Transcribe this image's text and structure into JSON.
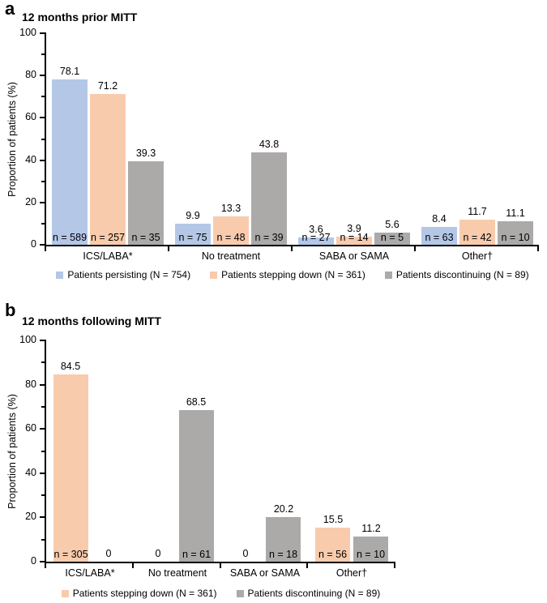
{
  "figure": {
    "background": "#ffffff",
    "text_color": "#000000",
    "axis_color": "#000000"
  },
  "colors": {
    "persisting_blue": "#B4C7E7",
    "stepping_down_orange": "#F8CBAD",
    "discontinuing_gray": "#ACA9A9"
  },
  "chart_data": [
    {
      "type": "bar",
      "panel_letter": "a",
      "title": "12 months prior MITT",
      "ylabel": "Proportion of patients (%)",
      "ylim": [
        0,
        100
      ],
      "ytick_values": [
        0,
        20,
        40,
        60,
        80,
        100
      ],
      "ytick_labels": [
        "0",
        "20",
        "40",
        "60",
        "80",
        "100"
      ],
      "minor_ytick_values": [
        10,
        30,
        50,
        70,
        90
      ],
      "grid": "off",
      "legend_position": "below-center",
      "categories": [
        "ICS/LABA*",
        "No treatment",
        "SABA or SAMA",
        "Other†"
      ],
      "series": [
        {
          "name": "Patients persisting (N = 754)",
          "color": "#B4C7E7",
          "values": [
            78.1,
            9.9,
            3.6,
            8.4
          ],
          "value_labels": [
            "78.1",
            "9.9",
            "3.6",
            "8.4"
          ],
          "n_labels": [
            "n = 589",
            "n = 75",
            "n = 27",
            "n = 63"
          ]
        },
        {
          "name": "Patients stepping down (N = 361)",
          "color": "#F8CBAD",
          "values": [
            71.2,
            13.3,
            3.9,
            11.7
          ],
          "value_labels": [
            "71.2",
            "13.3",
            "3.9",
            "11.7"
          ],
          "n_labels": [
            "n = 257",
            "n = 48",
            "n = 14",
            "n = 42"
          ]
        },
        {
          "name": "Patients discontinuing (N = 89)",
          "color": "#ACA9A9",
          "values": [
            39.3,
            43.8,
            5.6,
            11.1
          ],
          "value_labels": [
            "39.3",
            "43.8",
            "5.6",
            "11.1"
          ],
          "n_labels": [
            "n = 35",
            "n = 39",
            "n = 5",
            "n = 10"
          ]
        }
      ]
    },
    {
      "type": "bar",
      "panel_letter": "b",
      "title": "12 months following MITT",
      "ylabel": "Proportion of patients (%)",
      "ylim": [
        0,
        100
      ],
      "ytick_values": [
        0,
        20,
        40,
        60,
        80,
        100
      ],
      "ytick_labels": [
        "0",
        "20",
        "40",
        "60",
        "80",
        "100"
      ],
      "minor_ytick_values": [
        10,
        30,
        50,
        70,
        90
      ],
      "grid": "off",
      "legend_position": "below-center",
      "categories": [
        "ICS/LABA*",
        "No treatment",
        "SABA or SAMA",
        "Other†"
      ],
      "series": [
        {
          "name": "Patients stepping down (N = 361)",
          "color": "#F8CBAD",
          "values": [
            84.5,
            0,
            0,
            15.5
          ],
          "value_labels": [
            "84.5",
            "0",
            "0",
            "15.5"
          ],
          "n_labels": [
            "n = 305",
            null,
            null,
            "n = 56"
          ]
        },
        {
          "name": "Patients discontinuing (N = 89)",
          "color": "#ACA9A9",
          "values": [
            0,
            68.5,
            20.2,
            11.2
          ],
          "value_labels": [
            "0",
            "68.5",
            "20.2",
            "11.2"
          ],
          "n_labels": [
            null,
            "n = 61",
            "n = 18",
            "n = 10"
          ]
        }
      ]
    }
  ]
}
